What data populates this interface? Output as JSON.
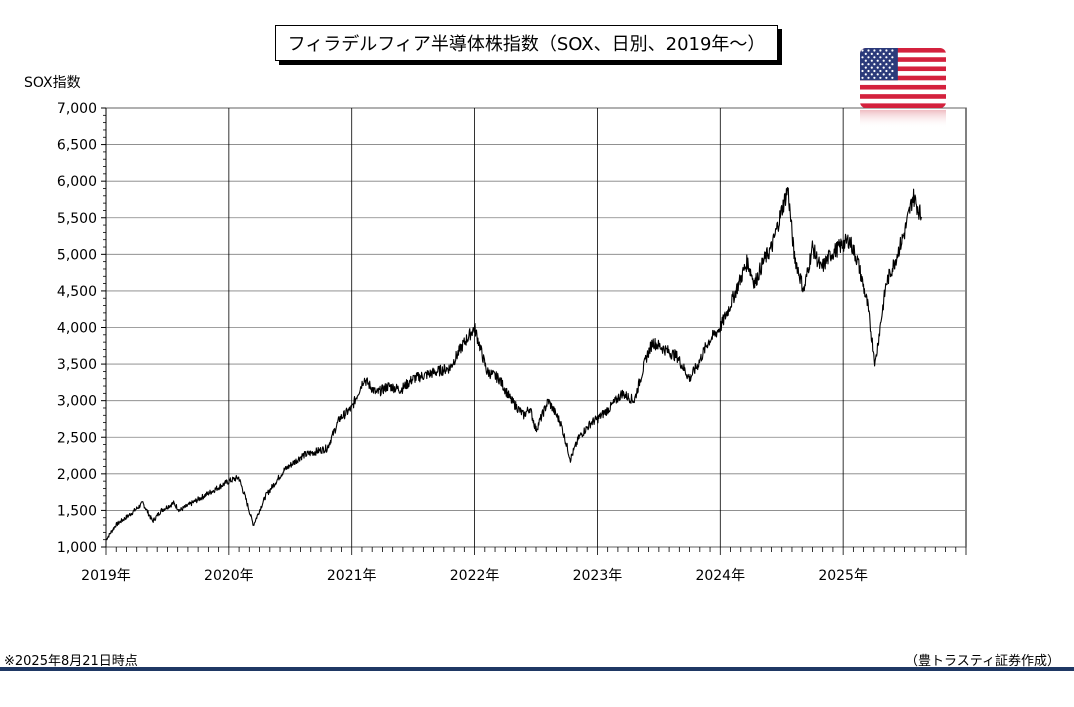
{
  "title": "フィラデルフィア半導体株指数（SOX、日別、2019年～）",
  "footnote": "※2025年8月21日時点",
  "source": "（豊トラスティ証券作成）",
  "flag_icon": "us-flag-icon",
  "chart_data": {
    "type": "line",
    "title": "フィラデルフィア半導体株指数（SOX、日別、2019年～）",
    "ylabel": "SOX指数",
    "xlabel": "",
    "ylim": [
      1000,
      7000
    ],
    "yticks": [
      1000,
      1500,
      2000,
      2500,
      3000,
      3500,
      4000,
      4500,
      5000,
      5500,
      6000,
      6500,
      7000
    ],
    "ytick_labels": [
      "1,000",
      "1,500",
      "2,000",
      "2,500",
      "3,000",
      "3,500",
      "4,000",
      "4,500",
      "5,000",
      "5,500",
      "6,000",
      "6,500",
      "7,000"
    ],
    "xlim": [
      2019.0,
      2026.0
    ],
    "xticks": [
      2019,
      2020,
      2021,
      2022,
      2023,
      2024,
      2025
    ],
    "xtick_labels": [
      "2019年",
      "2020年",
      "2021年",
      "2022年",
      "2023年",
      "2024年",
      "2025年"
    ],
    "grid": true,
    "line_color": "#000000",
    "series": [
      {
        "x": [
          2019.0,
          2019.08,
          2019.2,
          2019.3,
          2019.38,
          2019.45,
          2019.55,
          2019.6,
          2019.75,
          2019.9,
          2020.0,
          2020.08,
          2020.13,
          2020.2,
          2020.3,
          2020.45,
          2020.6,
          2020.7,
          2020.8,
          2020.9,
          2021.0,
          2021.1,
          2021.2,
          2021.3,
          2021.4,
          2021.5,
          2021.6,
          2021.7,
          2021.8,
          2021.9,
          2022.0,
          2022.05,
          2022.1,
          2022.2,
          2022.3,
          2022.4,
          2022.45,
          2022.5,
          2022.6,
          2022.7,
          2022.78,
          2022.85,
          2022.95,
          2023.0,
          2023.1,
          2023.2,
          2023.3,
          2023.4,
          2023.45,
          2023.55,
          2023.65,
          2023.75,
          2023.82,
          2023.9,
          2024.0,
          2024.08,
          2024.15,
          2024.22,
          2024.28,
          2024.35,
          2024.42,
          2024.5,
          2024.55,
          2024.6,
          2024.68,
          2024.75,
          2024.82,
          2024.9,
          2024.97,
          2025.05,
          2025.12,
          2025.2,
          2025.26,
          2025.3,
          2025.35,
          2025.42,
          2025.5,
          2025.57,
          2025.64
        ],
        "y": [
          1100,
          1300,
          1450,
          1600,
          1350,
          1500,
          1600,
          1500,
          1650,
          1800,
          1900,
          1950,
          1700,
          1300,
          1700,
          2050,
          2250,
          2300,
          2350,
          2750,
          2900,
          3300,
          3100,
          3200,
          3150,
          3300,
          3350,
          3400,
          3450,
          3750,
          4000,
          3700,
          3400,
          3300,
          3000,
          2800,
          2900,
          2600,
          3000,
          2700,
          2200,
          2500,
          2700,
          2750,
          2900,
          3100,
          3000,
          3600,
          3800,
          3700,
          3600,
          3300,
          3500,
          3800,
          4000,
          4300,
          4600,
          4900,
          4600,
          4900,
          5100,
          5600,
          5900,
          5000,
          4500,
          5100,
          4800,
          5000,
          5100,
          5200,
          4900,
          4300,
          3500,
          4000,
          4600,
          4900,
          5300,
          5800,
          5500
        ]
      }
    ]
  }
}
